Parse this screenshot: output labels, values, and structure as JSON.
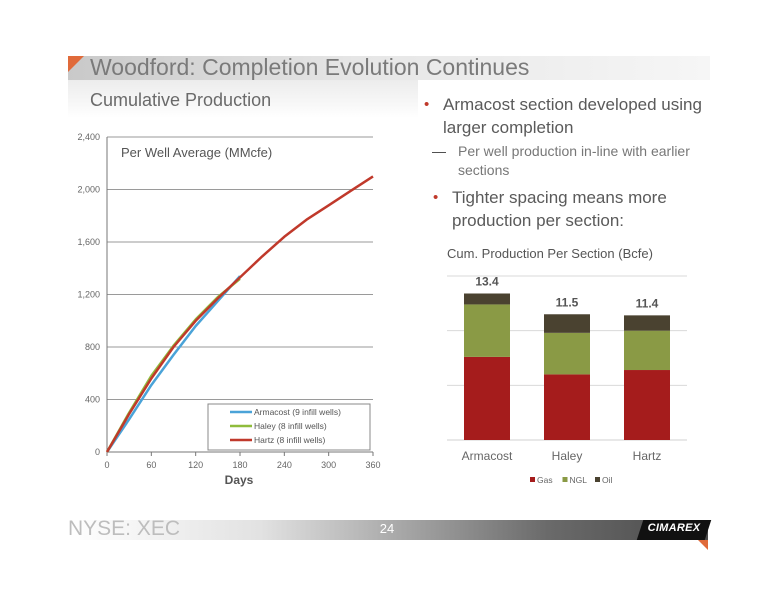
{
  "slide": {
    "title": "Woodford: Completion Evolution Continues",
    "subtitle": "Cumulative Production",
    "bullets": [
      "Armacost section developed using larger completion",
      "Tighter spacing means more production per section:"
    ],
    "sub_bullet": "Per well production in-line with earlier sections",
    "bullet_marker": "•",
    "sub_bullet_marker": "—",
    "footer": {
      "ticker": "NYSE: XEC",
      "page": "24",
      "logo": "CIMAREX"
    },
    "colors": {
      "accent_orange": "#e06a3a",
      "bullet_red": "#c0392b"
    }
  },
  "chart_data": [
    {
      "type": "line",
      "title": "Per Well Average (MMcfe)",
      "xlabel": "Days",
      "ylabel": "",
      "xlim": [
        0,
        360
      ],
      "ylim": [
        0,
        2400
      ],
      "x_ticks": [
        0,
        60,
        120,
        180,
        240,
        300,
        360
      ],
      "y_ticks": [
        0,
        400,
        800,
        1200,
        1600,
        2000,
        2400
      ],
      "y_tick_labels": [
        "0",
        "400",
        "800",
        "1,200",
        "1,600",
        "2,000",
        "2,400"
      ],
      "grid": true,
      "legend_position": "bottom-right",
      "series": [
        {
          "name": "Armacost (9 infill wells)",
          "color": "#4aa3d8",
          "x": [
            0,
            30,
            60,
            90,
            120,
            150,
            180
          ],
          "y": [
            0,
            250,
            510,
            740,
            960,
            1150,
            1340
          ]
        },
        {
          "name": "Haley (8 infill wells)",
          "color": "#8fbc3c",
          "x": [
            0,
            30,
            60,
            90,
            120,
            150,
            180
          ],
          "y": [
            0,
            300,
            580,
            810,
            1010,
            1180,
            1320
          ]
        },
        {
          "name": "Hartz (8 infill wells)",
          "color": "#c0392b",
          "x": [
            0,
            30,
            60,
            90,
            120,
            150,
            180,
            210,
            240,
            270,
            300,
            330,
            360
          ],
          "y": [
            0,
            290,
            560,
            800,
            1000,
            1170,
            1330,
            1490,
            1640,
            1770,
            1880,
            1990,
            2100
          ]
        }
      ]
    },
    {
      "type": "bar",
      "stacked": true,
      "title": "Cum. Production Per Section (Bcfe)",
      "categories": [
        "Armacost",
        "Haley",
        "Hartz"
      ],
      "totals": [
        13.4,
        11.5,
        11.4
      ],
      "total_labels": [
        "13.4",
        "11.5",
        "11.4"
      ],
      "ylim": [
        0,
        15
      ],
      "grid": true,
      "legend_position": "bottom",
      "series": [
        {
          "name": "Gas",
          "color": "#a51c1c",
          "values": [
            7.6,
            6.0,
            6.4
          ]
        },
        {
          "name": "NGL",
          "color": "#8a9a45",
          "values": [
            4.8,
            3.8,
            3.6
          ]
        },
        {
          "name": "Oil",
          "color": "#4a4230",
          "values": [
            1.0,
            1.7,
            1.4
          ]
        }
      ]
    }
  ]
}
